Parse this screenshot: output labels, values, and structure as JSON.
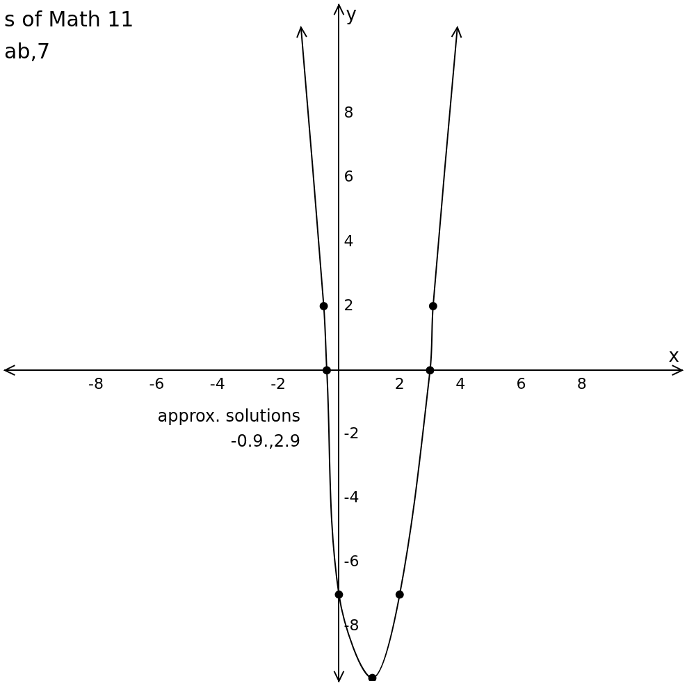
{
  "chart_data": {
    "type": "scatter",
    "annotations": [
      "s of Math 11",
      "ab,7",
      "approx. solutions",
      "-0.9.,2.9"
    ],
    "x_label": "x",
    "y_label": "y",
    "xlim": [
      -11,
      11.3
    ],
    "ylim": [
      -9.7,
      11.4
    ],
    "xticks": [
      -8,
      -6,
      -4,
      -2,
      2,
      4,
      6,
      8
    ],
    "yticks": [
      -8,
      -6,
      -4,
      -2,
      2,
      4,
      6,
      8
    ],
    "grid": false,
    "series": [
      {
        "type": "line",
        "line_style": "solid",
        "marker": "none",
        "color": "#000000",
        "x": [
          -1.25,
          -0.5,
          -0.4,
          0,
          1.1,
          2,
          3,
          3.1,
          3.9
        ],
        "values": [
          10.7,
          2,
          0,
          -7,
          -9.6,
          -7,
          0,
          2,
          10.7
        ]
      },
      {
        "type": "scatter",
        "marker": "circle",
        "color": "#000000",
        "x": [
          -0.5,
          -0.4,
          0,
          1.1,
          2,
          3,
          3.1
        ],
        "values": [
          2,
          0,
          -7,
          -9.6,
          -7,
          0,
          2
        ]
      }
    ]
  }
}
